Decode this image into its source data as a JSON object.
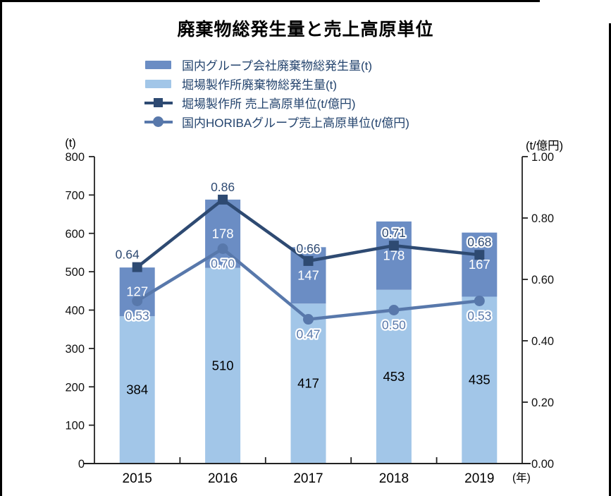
{
  "title": "廃棄物総発生量と売上高原単位",
  "legend": [
    {
      "label": "国内グループ会社廃棄物総発生量(t)",
      "swatch": "bar",
      "color": "#6b8dc4"
    },
    {
      "label": "堀場製作所廃棄物総発生量(t)",
      "swatch": "bar",
      "color": "#a2c6e8"
    },
    {
      "label": "堀場製作所 売上高原単位(t/億円)",
      "swatch": "line-square",
      "color": "#2e4a72"
    },
    {
      "label": "国内HORIBAグループ売上高原単位(t/億円)",
      "swatch": "line-circle",
      "color": "#5878ab"
    }
  ],
  "axes": {
    "left": {
      "unit": "(t)",
      "max": 800,
      "ticks": [
        800,
        700,
        600,
        500,
        400,
        300,
        200,
        100,
        0
      ]
    },
    "right": {
      "unit": "(t/億円)",
      "max": 1.0,
      "ticks": [
        "1.00",
        "0.80",
        "0.60",
        "0.40",
        "0.20",
        "0.00"
      ]
    },
    "x": {
      "unit": "(年)"
    }
  },
  "chart_data": {
    "type": "bar",
    "subtype": "stacked-bars-with-lines",
    "title": "廃棄物総発生量と売上高原単位",
    "categories": [
      "2015",
      "2016",
      "2017",
      "2018",
      "2019"
    ],
    "series": [
      {
        "name": "堀場製作所廃棄物総発生量(t)",
        "type": "bar",
        "stack": "bottom",
        "axis": "left",
        "color": "#a2c6e8",
        "label_color": "#000000",
        "values": [
          384,
          510,
          417,
          453,
          435
        ]
      },
      {
        "name": "国内グループ会社廃棄物総発生量(t)",
        "type": "bar",
        "stack": "top",
        "axis": "left",
        "color": "#6b8dc4",
        "label_color": "#ffffff",
        "values": [
          127,
          178,
          147,
          178,
          167
        ]
      },
      {
        "name": "堀場製作所 売上高原単位(t/億円)",
        "type": "line",
        "marker": "square",
        "axis": "right",
        "color": "#2e4a72",
        "values": [
          0.64,
          0.86,
          0.66,
          0.71,
          0.68
        ]
      },
      {
        "name": "国内HORIBAグループ売上高原単位(t/億円)",
        "type": "line",
        "marker": "circle",
        "axis": "right",
        "color": "#5878ab",
        "values": [
          0.53,
          0.7,
          0.47,
          0.5,
          0.53
        ]
      }
    ],
    "left_axis": {
      "label": "(t)",
      "range": [
        0,
        800
      ],
      "tick_step": 100
    },
    "right_axis": {
      "label": "(t/億円)",
      "range": [
        0,
        1.0
      ],
      "tick_step": 0.2
    },
    "x_axis": {
      "label": "(年)"
    },
    "grid": false,
    "legend_position": "top"
  }
}
